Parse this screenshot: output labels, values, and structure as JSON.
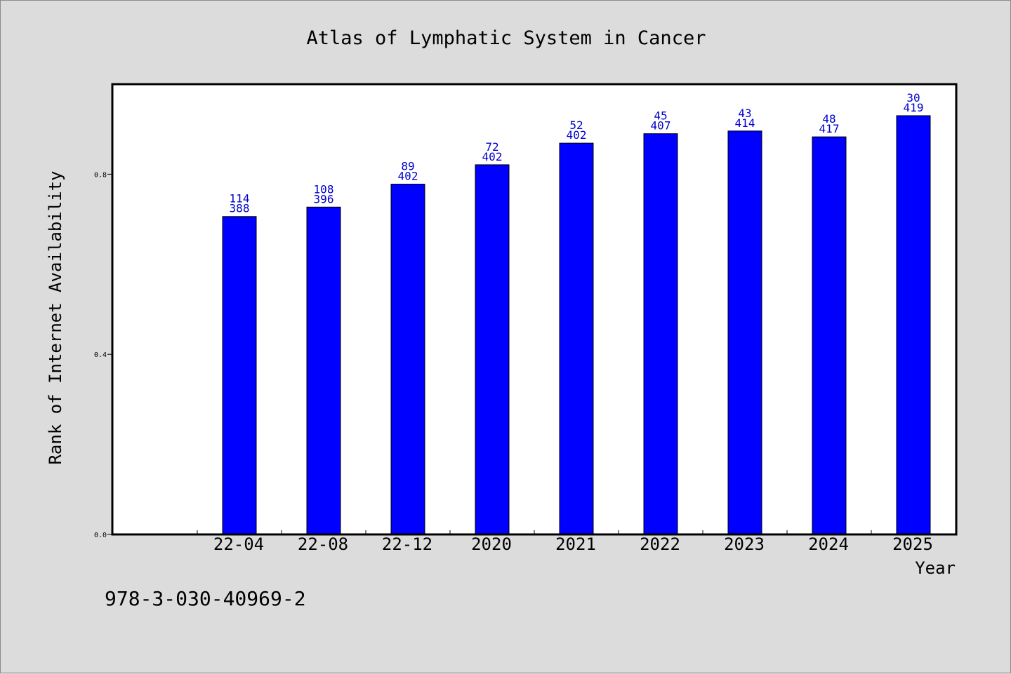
{
  "chart_data": {
    "type": "bar",
    "title": "Atlas of Lymphatic System in Cancer",
    "xlabel": "Year",
    "ylabel": "Rank of Internet Availability",
    "categories": [
      "22-04",
      "22-08",
      "22-12",
      "2020",
      "2021",
      "2022",
      "2023",
      "2024",
      "2025"
    ],
    "values": [
      0.706,
      0.727,
      0.778,
      0.821,
      0.869,
      0.89,
      0.896,
      0.883,
      0.93
    ],
    "bar_labels_top": [
      "114",
      "108",
      "89",
      "72",
      "52",
      "45",
      "43",
      "48",
      "30"
    ],
    "bar_labels_bottom": [
      "388",
      "396",
      "402",
      "402",
      "402",
      "407",
      "414",
      "417",
      "419"
    ],
    "yticks": [
      "0.0",
      "0.4",
      "0.8"
    ],
    "ytick_values": [
      0.0,
      0.4,
      0.8
    ],
    "ylim": [
      0,
      1.0
    ],
    "grid": false,
    "bar_color": "#0000ff",
    "label_color": "#0000cc"
  },
  "footer": {
    "text": "978-3-030-40969-2"
  }
}
